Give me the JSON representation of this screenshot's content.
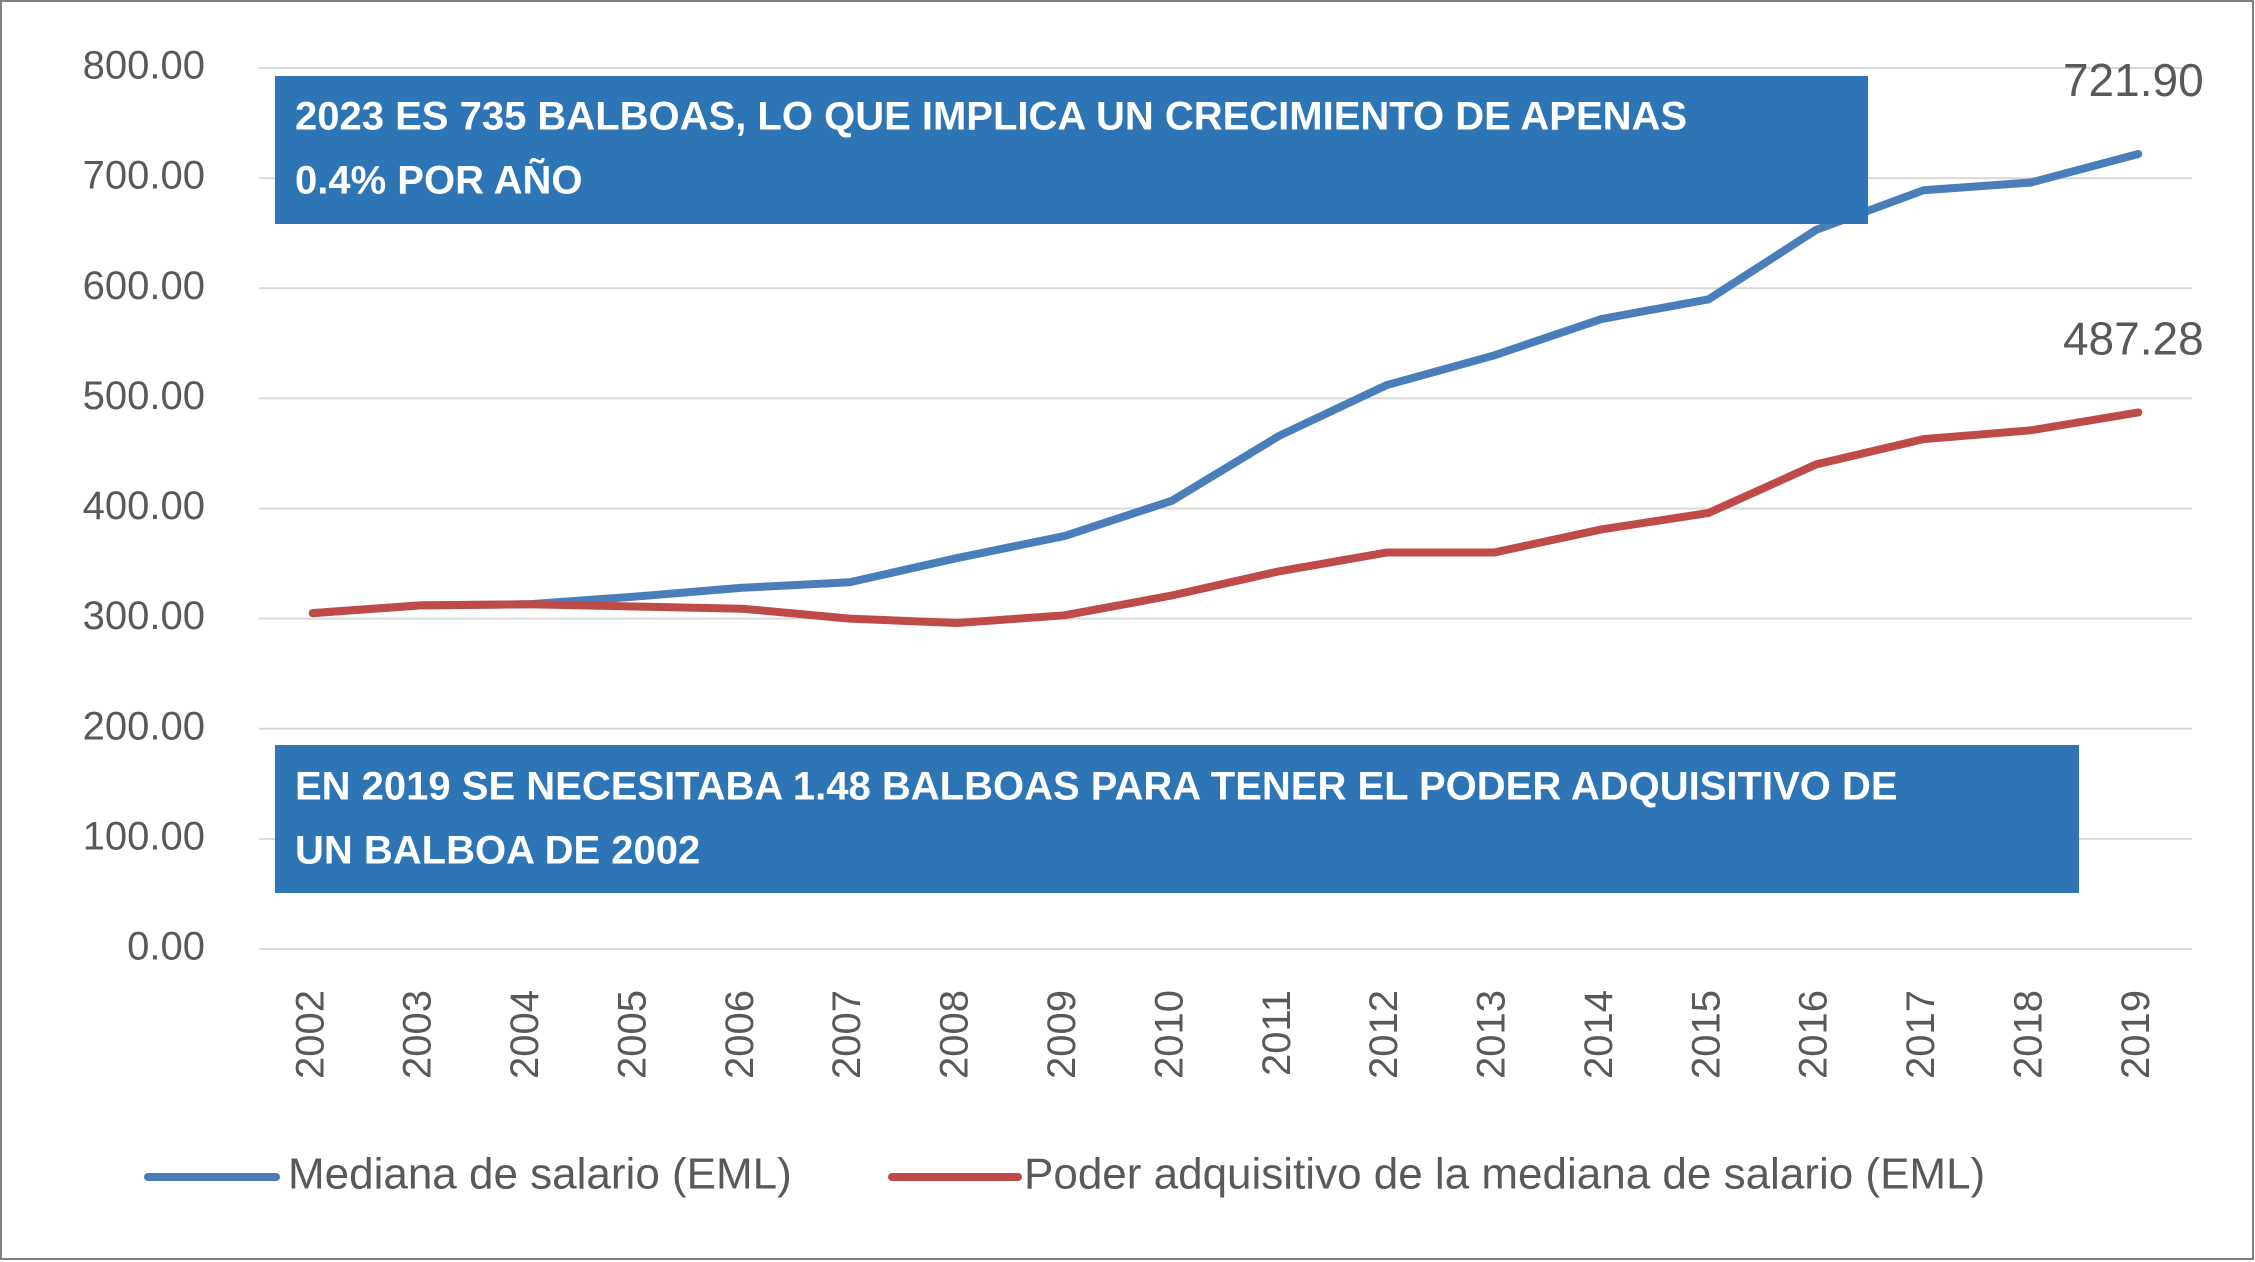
{
  "chart_data": {
    "type": "line",
    "categories": [
      "2002",
      "2003",
      "2004",
      "2005",
      "2006",
      "2007",
      "2008",
      "2009",
      "2010",
      "2011",
      "2012",
      "2013",
      "2014",
      "2015",
      "2016",
      "2017",
      "2018",
      "2019"
    ],
    "series": [
      {
        "name": "Mediana de salario (EML)",
        "color": "#4a7ebb",
        "values": [
          305,
          312,
          313,
          320,
          328,
          333,
          355,
          375,
          407,
          466,
          512,
          539,
          572,
          590,
          653,
          689,
          696,
          721.9
        ],
        "value_labels": [
          null,
          null,
          null,
          null,
          null,
          null,
          null,
          null,
          null,
          null,
          null,
          null,
          null,
          null,
          null,
          null,
          null,
          "721.90"
        ]
      },
      {
        "name": "Poder adquisitivo de la mediana de salario (EML)",
        "color": "#be4b48",
        "values": [
          305,
          312,
          313,
          311,
          309,
          300,
          296,
          303,
          321,
          343,
          360,
          360,
          381,
          396,
          440,
          463,
          471,
          487.28
        ],
        "value_labels": [
          null,
          null,
          null,
          null,
          null,
          null,
          null,
          null,
          null,
          null,
          null,
          null,
          null,
          null,
          null,
          null,
          null,
          "487.28"
        ]
      }
    ],
    "ylim": [
      0,
      800
    ],
    "yticks": [
      {
        "value": 0,
        "label": "0.00"
      },
      {
        "value": 100,
        "label": "100.00"
      },
      {
        "value": 200,
        "label": "200.00"
      },
      {
        "value": 300,
        "label": "300.00"
      },
      {
        "value": 400,
        "label": "400.00"
      },
      {
        "value": 500,
        "label": "500.00"
      },
      {
        "value": 600,
        "label": "600.00"
      },
      {
        "value": 700,
        "label": "700.00"
      },
      {
        "value": 800,
        "label": "800.00"
      }
    ],
    "grid": true,
    "legend": "bottom",
    "annotations": [
      [
        "2023 ES 735 BALBOAS, LO QUE IMPLICA UN CRECIMIENTO DE APENAS",
        "0.4% POR AÑO"
      ],
      [
        "EN 2019 SE NECESITABA 1.48 BALBOAS PARA TENER EL PODER ADQUISITIVO DE",
        "UN BALBOA DE 2002"
      ]
    ]
  }
}
